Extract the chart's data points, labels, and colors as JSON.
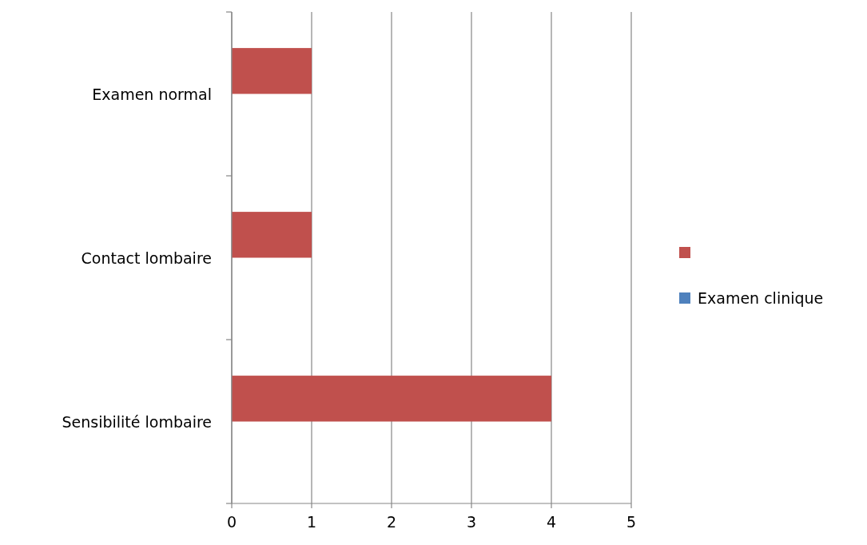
{
  "chart_data": {
    "type": "bar",
    "orientation": "horizontal",
    "categories": [
      "Examen normal",
      "Contact lombaire",
      "Sensibilité lombaire"
    ],
    "series": [
      {
        "color": "#c0504d",
        "values": [
          1,
          1,
          4
        ]
      },
      {
        "name": "Examen clinique",
        "color": "#4f81bd",
        "values": [
          null,
          null,
          null
        ]
      }
    ],
    "xlim": [
      0,
      5
    ],
    "xticks": [
      0,
      1,
      2,
      3,
      4,
      5
    ],
    "grid": "x",
    "legend": "right"
  }
}
